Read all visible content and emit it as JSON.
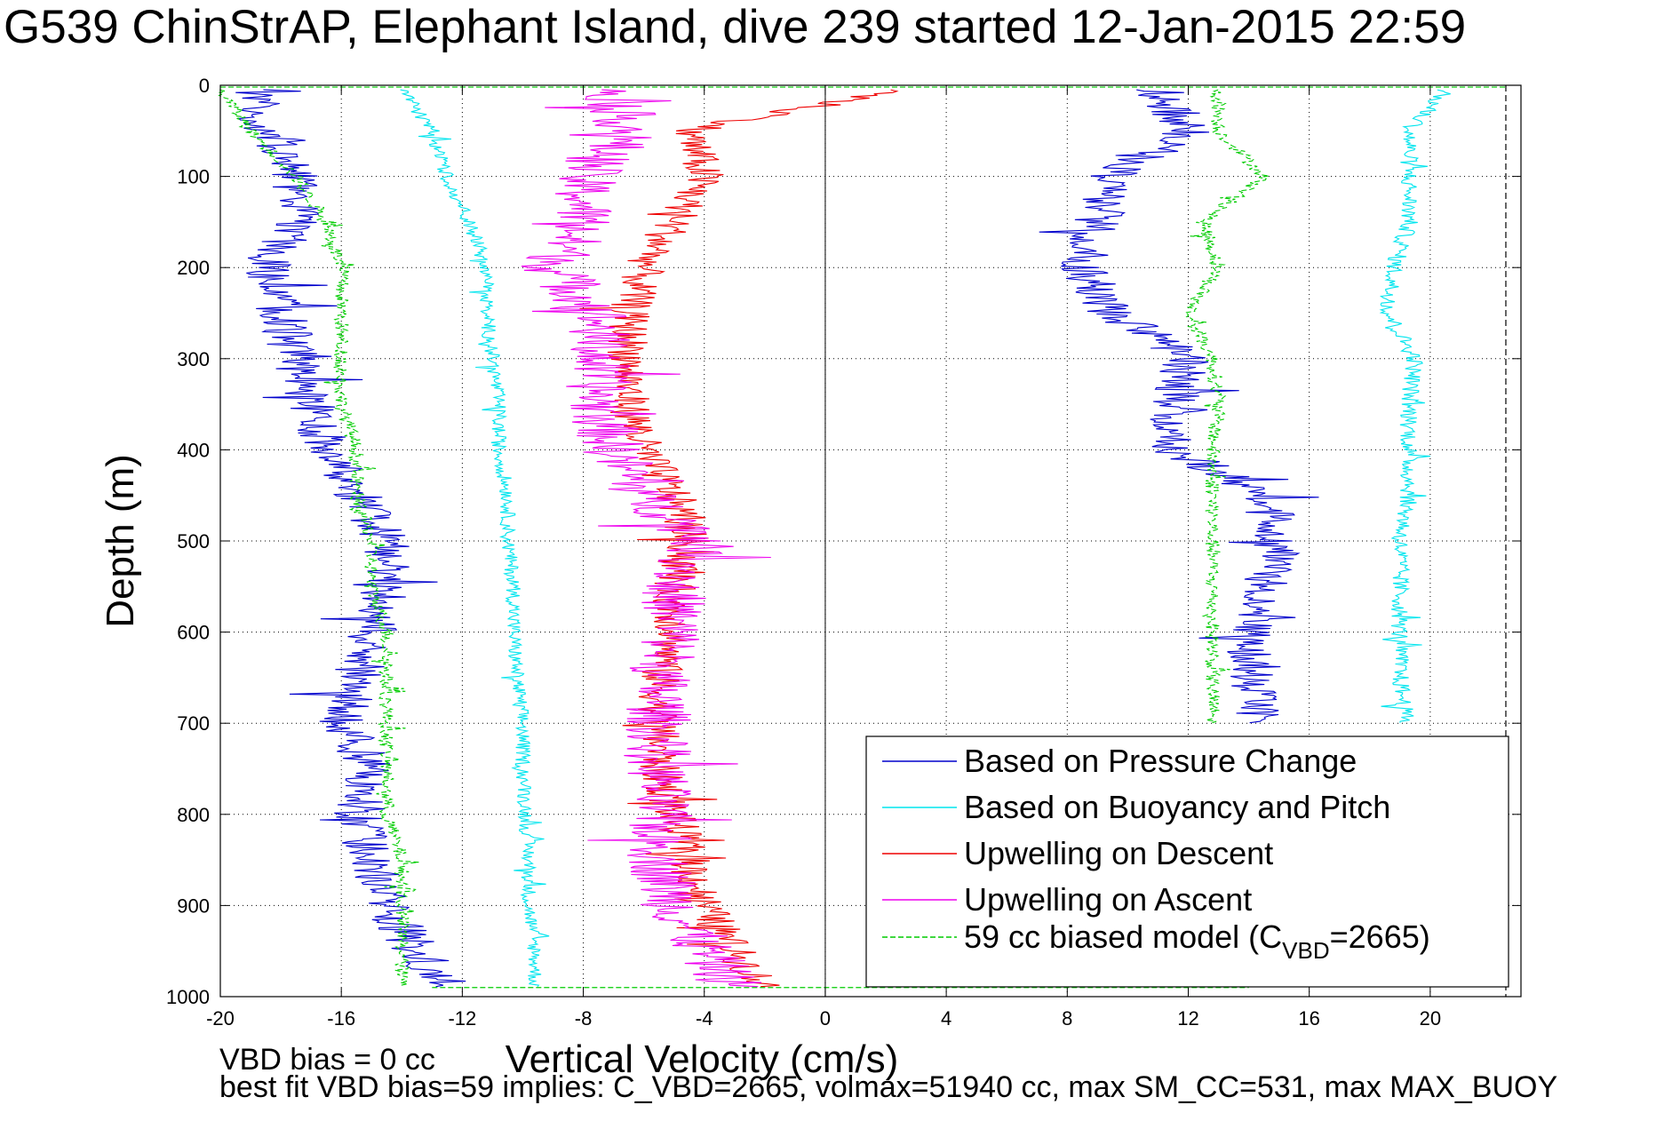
{
  "title": "G539 ChinStrAP, Elephant Island, dive 239 started 12-Jan-2015 22:59",
  "footer": {
    "vbd_bias": "VBD bias = 0 cc",
    "best_fit": "best fit VBD bias=59 implies: C_VBD=2665, volmax=51940 cc, max SM_CC=531, max MAX_BUOY"
  },
  "colors": {
    "pressure": "#0000cc",
    "buoyancy": "#00e5ee",
    "descent": "#ee0000",
    "ascent": "#ee00ee",
    "model": "#00cc00"
  },
  "chart_data": {
    "type": "line",
    "title": "G539 ChinStrAP, Elephant Island, dive 239 started 12-Jan-2015 22:59",
    "xlabel": "Vertical Velocity (cm/s)",
    "ylabel": "Depth (m)",
    "xlim": [
      -20,
      23
    ],
    "ylim": [
      0,
      1000
    ],
    "y_reversed": true,
    "grid": true,
    "xticks": [
      "-20",
      "-16",
      "-12",
      "-8",
      "-4",
      "0",
      "4",
      "8",
      "12",
      "16",
      "20"
    ],
    "yticks": [
      "0",
      "100",
      "200",
      "300",
      "400",
      "500",
      "600",
      "700",
      "800",
      "900",
      "1000"
    ],
    "legend_position": "bottom-right",
    "series": [
      {
        "name": "Based on Pressure Change",
        "depth": [
          5,
          50,
          100,
          150,
          200,
          250,
          300,
          350,
          400,
          450,
          500,
          550,
          600,
          650,
          700,
          750,
          800,
          850,
          900,
          950,
          990
        ],
        "descent_x": [
          -19,
          -18.5,
          -17.5,
          -17.5,
          -18.5,
          -18,
          -17.5,
          -17,
          -16.5,
          -15.5,
          -14.5,
          -14.5,
          -15,
          -15.5,
          -16,
          -15,
          -15.5,
          -15,
          -14.5,
          -13.5,
          -12.5
        ],
        "ascent_x": [
          11,
          12,
          9.5,
          9,
          8.5,
          9.5,
          12,
          11.5,
          11.5,
          14.5,
          15,
          14.5,
          14,
          14,
          14.5,
          null,
          null,
          null,
          null,
          null,
          null
        ]
      },
      {
        "name": "Based on Buoyancy and Pitch",
        "depth": [
          5,
          50,
          100,
          150,
          200,
          250,
          300,
          350,
          400,
          450,
          500,
          550,
          600,
          650,
          700,
          750,
          800,
          850,
          900,
          950,
          990
        ],
        "descent_x": [
          -14,
          -13,
          -12.5,
          -11.8,
          -11.2,
          -11.2,
          -11,
          -10.8,
          -10.8,
          -10.5,
          -10.5,
          -10.3,
          -10.3,
          -10.2,
          -10,
          -10,
          -9.9,
          -9.8,
          -9.8,
          -9.6,
          -9.6
        ],
        "ascent_x": [
          20.5,
          19.3,
          19.3,
          19.3,
          18.8,
          18.6,
          19.5,
          19.3,
          19.3,
          19.3,
          19.0,
          19.0,
          19.0,
          19.0,
          19.2,
          null,
          null,
          null,
          null,
          null,
          null
        ]
      },
      {
        "name": "Upwelling on Descent",
        "depth": [
          5,
          50,
          100,
          150,
          200,
          250,
          300,
          350,
          400,
          450,
          500,
          550,
          600,
          650,
          700,
          750,
          800,
          850,
          900,
          950,
          990
        ],
        "x": [
          2.5,
          -4.5,
          -4,
          -5,
          -6,
          -6.5,
          -6.5,
          -6.5,
          -6,
          -5,
          -4.5,
          -5,
          -5,
          -5.5,
          -5.5,
          -5.5,
          -5,
          -4.5,
          -4,
          -3,
          -2
        ]
      },
      {
        "name": "Upwelling on Ascent",
        "depth": [
          5,
          50,
          100,
          150,
          200,
          250,
          300,
          350,
          400,
          450,
          500,
          550,
          600,
          650,
          700,
          750,
          800,
          850,
          900,
          950,
          990
        ],
        "x": [
          -7,
          -6.5,
          -8,
          -8,
          -9,
          -7.5,
          -7.5,
          -7.5,
          -7,
          -6,
          -4,
          -5,
          -5,
          -5.5,
          -5.5,
          -5.5,
          -5.5,
          -5.5,
          -5,
          -4,
          -3
        ]
      },
      {
        "name": "59 cc biased model (C",
        "name_subscript": "VBD",
        "name_suffix": "=2665)",
        "depth": [
          5,
          50,
          100,
          150,
          200,
          250,
          300,
          350,
          400,
          450,
          500,
          550,
          600,
          650,
          700,
          750,
          800,
          850,
          900,
          950,
          990
        ],
        "descent_x": [
          -20,
          -19,
          -17.5,
          -16.5,
          -16,
          -16,
          -16,
          -16,
          -15.5,
          -15.5,
          -15,
          -15,
          -14.5,
          -14.5,
          -14.5,
          -14.5,
          -14.5,
          -14,
          -14,
          -14,
          -14
        ],
        "ascent_x": [
          13,
          13,
          14.5,
          12.5,
          13,
          12,
          12.8,
          13,
          12.8,
          12.8,
          12.8,
          12.8,
          12.8,
          12.8,
          12.8,
          null,
          null,
          null,
          null,
          null,
          null
        ]
      }
    ]
  }
}
